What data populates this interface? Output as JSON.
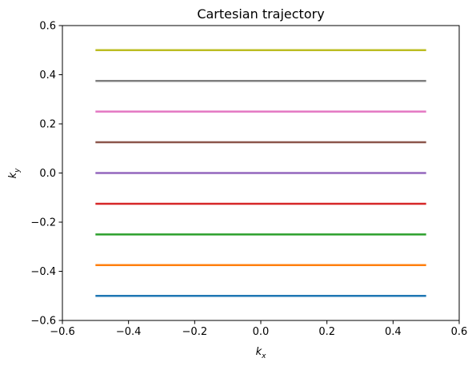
{
  "chart_data": {
    "type": "line",
    "title": "Cartesian trajectory",
    "xlabel": {
      "base": "k",
      "sub": "x"
    },
    "ylabel": {
      "base": "k",
      "sub": "y"
    },
    "xlim": [
      -0.6,
      0.6
    ],
    "ylim": [
      -0.6,
      0.6
    ],
    "xticks": [
      -0.6,
      -0.4,
      -0.2,
      0.0,
      0.2,
      0.4,
      0.6
    ],
    "yticks": [
      -0.6,
      -0.4,
      -0.2,
      0.0,
      0.2,
      0.4,
      0.6
    ],
    "xtick_labels": [
      "−0.6",
      "−0.4",
      "−0.2",
      "0.0",
      "0.2",
      "0.4",
      "0.6"
    ],
    "ytick_labels": [
      "−0.6",
      "−0.4",
      "−0.2",
      "0.0",
      "0.2",
      "0.4",
      "0.6"
    ],
    "grid": false,
    "legend": "none",
    "series": [
      {
        "color": "#1f77b4",
        "x": [
          -0.5,
          0.5
        ],
        "y": [
          -0.5,
          -0.5
        ]
      },
      {
        "color": "#ff7f0e",
        "x": [
          -0.5,
          0.5
        ],
        "y": [
          -0.375,
          -0.375
        ]
      },
      {
        "color": "#2ca02c",
        "x": [
          -0.5,
          0.5
        ],
        "y": [
          -0.25,
          -0.25
        ]
      },
      {
        "color": "#d62728",
        "x": [
          -0.5,
          0.5
        ],
        "y": [
          -0.125,
          -0.125
        ]
      },
      {
        "color": "#9467bd",
        "x": [
          -0.5,
          0.5
        ],
        "y": [
          0.0,
          0.0
        ]
      },
      {
        "color": "#8c564b",
        "x": [
          -0.5,
          0.5
        ],
        "y": [
          0.125,
          0.125
        ]
      },
      {
        "color": "#e377c2",
        "x": [
          -0.5,
          0.5
        ],
        "y": [
          0.25,
          0.25
        ]
      },
      {
        "color": "#7f7f7f",
        "x": [
          -0.5,
          0.5
        ],
        "y": [
          0.375,
          0.375
        ]
      },
      {
        "color": "#bcbd22",
        "x": [
          -0.5,
          0.5
        ],
        "y": [
          0.5,
          0.5
        ]
      }
    ]
  }
}
